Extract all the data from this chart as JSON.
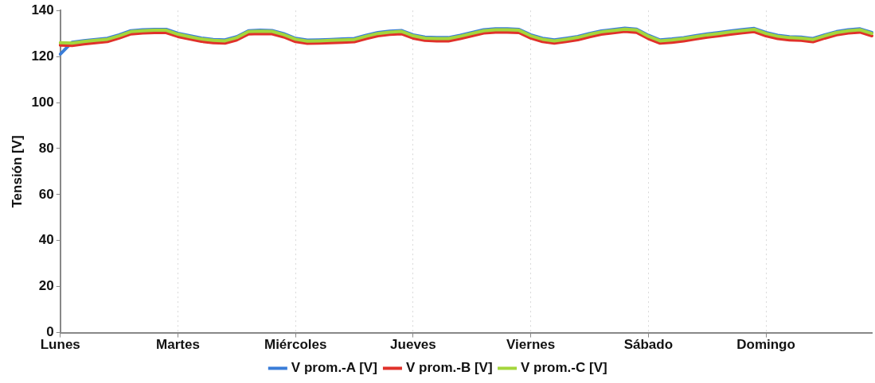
{
  "chart_data": {
    "type": "line",
    "ylabel": "Tensión [V]",
    "categories": [
      "Lunes",
      null,
      null,
      null,
      null,
      null,
      null,
      null,
      null,
      null,
      "Martes",
      null,
      null,
      null,
      null,
      null,
      null,
      null,
      null,
      null,
      "Miércoles",
      null,
      null,
      null,
      null,
      null,
      null,
      null,
      null,
      null,
      "Jueves",
      null,
      null,
      null,
      null,
      null,
      null,
      null,
      null,
      null,
      "Viernes",
      null,
      null,
      null,
      null,
      null,
      null,
      null,
      null,
      null,
      "Sábado",
      null,
      null,
      null,
      null,
      null,
      null,
      null,
      null,
      null,
      "Domingo",
      null,
      null,
      null,
      null,
      null,
      null,
      null,
      null,
      null
    ],
    "series": [
      {
        "name": "V prom.-A [V]",
        "color": "#3a7dd8",
        "values": [
          121,
          126.2,
          126.9,
          127.4,
          127.9,
          129.4,
          131.2,
          131.6,
          131.8,
          131.8,
          130.1,
          129,
          128,
          127.4,
          127.2,
          128.6,
          131.2,
          131.4,
          131.3,
          129.9,
          127.9,
          127.1,
          127.2,
          127.4,
          127.6,
          127.8,
          129.2,
          130.4,
          131,
          131.3,
          129.4,
          128.4,
          128.2,
          128.2,
          129.2,
          130.4,
          131.6,
          132,
          132,
          131.8,
          129.4,
          127.9,
          127.2,
          127.9,
          128.7,
          130,
          131.1,
          131.7,
          132.3,
          131.9,
          129.2,
          127.2,
          127.6,
          128.2,
          129,
          129.8,
          130.4,
          131.1,
          131.7,
          132.2,
          130.4,
          129.2,
          128.6,
          128.4,
          127.8,
          129.4,
          130.8,
          131.6,
          132,
          130.4
        ]
      },
      {
        "name": "V prom.-B [V]",
        "color": "#e0312a",
        "values": [
          125,
          124.8,
          125.5,
          126,
          126.5,
          128,
          129.8,
          130.2,
          130.4,
          130.4,
          128.7,
          127.6,
          126.6,
          126,
          125.8,
          127.2,
          129.8,
          130,
          129.9,
          128.5,
          126.5,
          125.7,
          125.8,
          126,
          126.2,
          126.4,
          127.8,
          129,
          129.6,
          129.9,
          128,
          127,
          126.8,
          126.8,
          127.8,
          129,
          130.2,
          130.6,
          130.6,
          130.4,
          128,
          126.5,
          125.8,
          126.5,
          127.3,
          128.6,
          129.7,
          130.3,
          130.9,
          130.5,
          127.8,
          125.8,
          126.2,
          126.8,
          127.6,
          128.4,
          129,
          129.7,
          130.3,
          130.8,
          129,
          127.8,
          127.2,
          127,
          126.4,
          128,
          129.4,
          130.2,
          130.6,
          129
        ]
      },
      {
        "name": "V prom.-C [V]",
        "color": "#a4d63c",
        "values": [
          126,
          125.8,
          126.5,
          127,
          127.5,
          129,
          130.8,
          131.2,
          131.4,
          131.4,
          129.7,
          128.6,
          127.6,
          127,
          126.8,
          128.2,
          130.8,
          131,
          130.9,
          129.5,
          127.5,
          126.7,
          126.8,
          127,
          127.2,
          127.4,
          128.8,
          130,
          130.6,
          130.9,
          129,
          128,
          127.8,
          127.8,
          128.8,
          130,
          131.2,
          131.6,
          131.6,
          131.4,
          129,
          127.5,
          126.8,
          127.5,
          128.3,
          129.6,
          130.7,
          131.3,
          131.9,
          131.5,
          128.8,
          126.8,
          127.2,
          127.8,
          128.6,
          129.4,
          130,
          130.7,
          131.3,
          131.8,
          130,
          128.8,
          128.2,
          128,
          127.4,
          129,
          130.4,
          131.2,
          131.6,
          130
        ]
      }
    ],
    "ylim": [
      0,
      140
    ],
    "yticks": [
      0,
      20,
      40,
      60,
      80,
      100,
      120,
      140
    ],
    "grid": "x",
    "legend": "bottom",
    "line_style": "solid"
  }
}
